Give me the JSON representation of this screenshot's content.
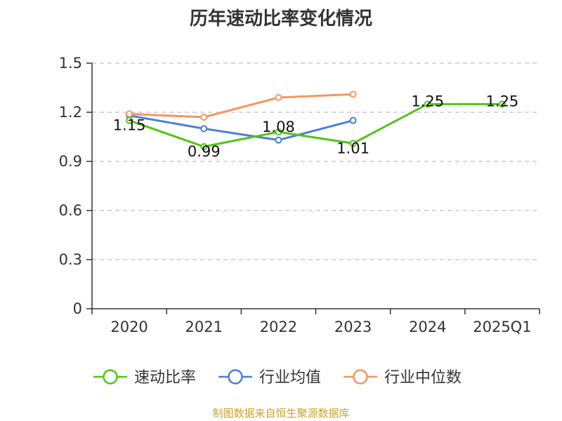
{
  "chart_data": {
    "type": "line",
    "title": "历年速动比率变化情况",
    "categories": [
      "2020",
      "2021",
      "2022",
      "2023",
      "2024",
      "2025Q1"
    ],
    "ylim": [
      0,
      1.5
    ],
    "yticks": [
      "0",
      "0.3",
      "0.6",
      "0.9",
      "1.2",
      "1.5"
    ],
    "grid": true,
    "legend_position": "bottom",
    "series": [
      {
        "name": "速动比率",
        "color": "#52c41a",
        "values": [
          1.15,
          0.99,
          1.08,
          1.01,
          1.25,
          1.25
        ],
        "labels": [
          "1.15",
          "0.99",
          "1.08",
          "1.01",
          "1.25",
          "1.25"
        ]
      },
      {
        "name": "行业均值",
        "color": "#4a7fd9",
        "values": [
          1.18,
          1.1,
          1.03,
          1.15,
          null,
          null
        ]
      },
      {
        "name": "行业中位数",
        "color": "#f59563",
        "values": [
          1.19,
          1.17,
          1.29,
          1.31,
          null,
          null
        ]
      }
    ]
  },
  "footer": {
    "source": "制图数据来自恒生聚源数据库"
  }
}
